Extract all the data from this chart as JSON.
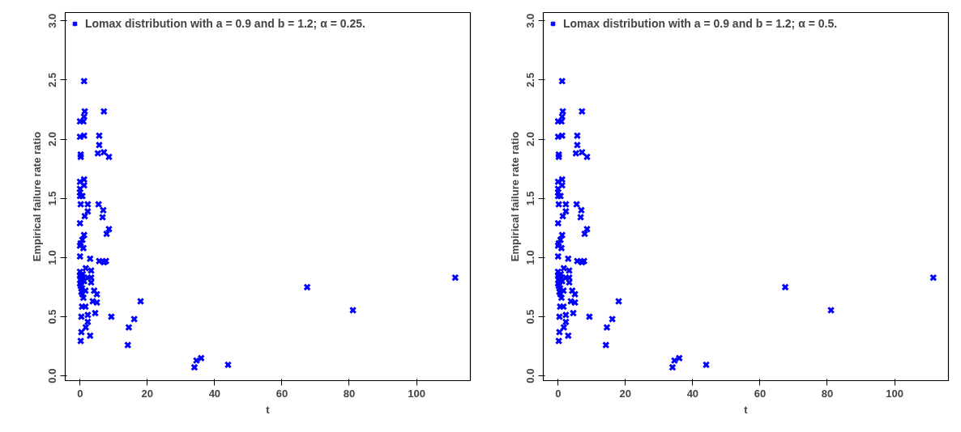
{
  "chart_data": [
    {
      "type": "scatter",
      "xlabel": "t",
      "ylabel": "Empirical failure rate ratio",
      "xlim": [
        -4.4,
        116
      ],
      "ylim": [
        -0.04,
        3.07
      ],
      "xticks": [
        0,
        20,
        40,
        60,
        80,
        100
      ],
      "yticks": [
        {
          "value": 0,
          "label": "0.0"
        },
        {
          "value": 0.5,
          "label": "0.5"
        },
        {
          "value": 1,
          "label": "1.0"
        },
        {
          "value": 1.5,
          "label": "1.5"
        },
        {
          "value": 2,
          "label": "2.0"
        },
        {
          "value": 2.5,
          "label": "2.5"
        },
        {
          "value": 3,
          "label": "3.0"
        }
      ],
      "grid": false,
      "legend": "top left",
      "marker": "cross",
      "series": [
        {
          "name": "Lomax distribution with a = 0.9 and b = 1.2; α = 0.25.",
          "color": "#0000ff",
          "x": [
            1.2,
            1.4,
            7.1,
            1.2,
            1.0,
            0,
            0,
            1.2,
            5.7,
            5.7,
            5.3,
            7.1,
            8.6,
            0.2,
            0.2,
            1.2,
            1.2,
            0,
            0,
            0,
            0,
            0.7,
            0.2,
            2.3,
            5.5,
            6.9,
            6.7,
            2.3,
            1.4,
            0,
            8.6,
            7.9,
            1.2,
            0.7,
            0.2,
            1.0,
            0,
            0,
            3.0,
            5.7,
            7.1,
            7.7,
            0,
            0,
            0.3,
            0.5,
            0,
            0.2,
            0.8,
            1.0,
            0.6,
            1.2,
            0.4,
            0.1,
            1.7,
            3.3,
            3.3,
            2.3,
            3.3,
            1.6,
            0.7,
            1.0,
            4.2,
            5.0,
            3.8,
            5.0,
            0.6,
            1.6,
            18.0,
            2.3,
            4.5,
            0.4,
            9.3,
            2.3,
            1.7,
            0.4,
            3.0,
            0.2,
            14.5,
            16.1,
            14.2,
            34.0,
            34.6,
            36.0,
            44.0,
            67.5,
            81.1,
            111.5
          ],
          "values": [
            2.49,
            2.235,
            2.235,
            2.19,
            2.15,
            2.15,
            2.02,
            2.03,
            2.03,
            1.95,
            1.88,
            1.89,
            1.85,
            1.87,
            1.85,
            1.66,
            1.61,
            1.64,
            1.58,
            1.55,
            1.52,
            1.52,
            1.45,
            1.45,
            1.45,
            1.4,
            1.34,
            1.39,
            1.35,
            1.29,
            1.24,
            1.2,
            1.19,
            1.15,
            1.12,
            1.08,
            1.1,
            1.01,
            0.99,
            0.97,
            0.96,
            0.97,
            0.88,
            0.85,
            0.82,
            0.8,
            0.78,
            0.76,
            0.86,
            0.83,
            0.74,
            0.8,
            0.71,
            0.84,
            0.91,
            0.89,
            0.83,
            0.83,
            0.79,
            0.72,
            0.69,
            0.66,
            0.72,
            0.69,
            0.63,
            0.62,
            0.585,
            0.585,
            0.63,
            0.515,
            0.53,
            0.5,
            0.5,
            0.456,
            0.41,
            0.37,
            0.34,
            0.295,
            0.41,
            0.48,
            0.26,
            0.072,
            0.13,
            0.15,
            0.094,
            0.75,
            0.555,
            0.83
          ]
        }
      ]
    },
    {
      "type": "scatter",
      "xlabel": "t",
      "ylabel": "Empirical failure rate ratio",
      "xlim": [
        -4.4,
        116
      ],
      "ylim": [
        -0.04,
        3.07
      ],
      "xticks": [
        0,
        20,
        40,
        60,
        80,
        100
      ],
      "yticks": [
        {
          "value": 0,
          "label": "0.0"
        },
        {
          "value": 0.5,
          "label": "0.5"
        },
        {
          "value": 1,
          "label": "1.0"
        },
        {
          "value": 1.5,
          "label": "1.5"
        },
        {
          "value": 2,
          "label": "2.0"
        },
        {
          "value": 2.5,
          "label": "2.5"
        },
        {
          "value": 3,
          "label": "3.0"
        }
      ],
      "grid": false,
      "legend": "top left",
      "marker": "cross",
      "series": [
        {
          "name": "Lomax distribution with a = 0.9 and b = 1.2; α = 0.5.",
          "color": "#0000ff",
          "x": [
            1.2,
            1.4,
            7.1,
            1.2,
            1.0,
            0,
            0,
            1.2,
            5.7,
            5.7,
            5.3,
            7.1,
            8.6,
            0.2,
            0.2,
            1.2,
            1.2,
            0,
            0,
            0,
            0,
            0.7,
            0.2,
            2.3,
            5.5,
            6.9,
            6.7,
            2.3,
            1.4,
            0,
            8.6,
            7.9,
            1.2,
            0.7,
            0.2,
            1.0,
            0,
            0,
            3.0,
            5.7,
            7.1,
            7.7,
            0,
            0,
            0.3,
            0.5,
            0,
            0.2,
            0.8,
            1.0,
            0.6,
            1.2,
            0.4,
            0.1,
            1.7,
            3.3,
            3.3,
            2.3,
            3.3,
            1.6,
            0.7,
            1.0,
            4.2,
            5.0,
            3.8,
            5.0,
            0.6,
            1.6,
            18.0,
            2.3,
            4.5,
            0.4,
            9.3,
            2.3,
            1.7,
            0.4,
            3.0,
            0.2,
            14.5,
            16.1,
            14.2,
            34.0,
            34.6,
            36.0,
            44.0,
            67.5,
            81.1,
            111.5
          ],
          "values": [
            2.49,
            2.235,
            2.235,
            2.19,
            2.15,
            2.15,
            2.02,
            2.03,
            2.03,
            1.95,
            1.88,
            1.89,
            1.85,
            1.87,
            1.85,
            1.66,
            1.61,
            1.64,
            1.58,
            1.55,
            1.52,
            1.52,
            1.45,
            1.45,
            1.45,
            1.4,
            1.34,
            1.39,
            1.35,
            1.29,
            1.24,
            1.2,
            1.19,
            1.15,
            1.12,
            1.08,
            1.1,
            1.01,
            0.99,
            0.97,
            0.96,
            0.97,
            0.88,
            0.85,
            0.82,
            0.8,
            0.78,
            0.76,
            0.86,
            0.83,
            0.74,
            0.8,
            0.71,
            0.84,
            0.91,
            0.89,
            0.83,
            0.83,
            0.79,
            0.72,
            0.69,
            0.66,
            0.72,
            0.69,
            0.63,
            0.62,
            0.585,
            0.585,
            0.63,
            0.515,
            0.53,
            0.5,
            0.5,
            0.456,
            0.41,
            0.37,
            0.34,
            0.295,
            0.41,
            0.48,
            0.26,
            0.072,
            0.13,
            0.15,
            0.094,
            0.75,
            0.555,
            0.83
          ]
        }
      ]
    }
  ]
}
